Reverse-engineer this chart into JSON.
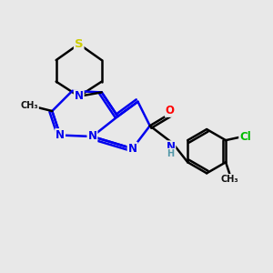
{
  "bg_color": "#e8e8e8",
  "bond_width": 1.8,
  "atom_colors": {
    "N": "#0000ee",
    "S": "#cccc00",
    "O": "#ff0000",
    "Cl": "#00bb00",
    "C": "#000000",
    "H": "#5599aa"
  },
  "font_size": 8.5,
  "xlim": [
    0,
    10
  ],
  "ylim": [
    0,
    10
  ]
}
